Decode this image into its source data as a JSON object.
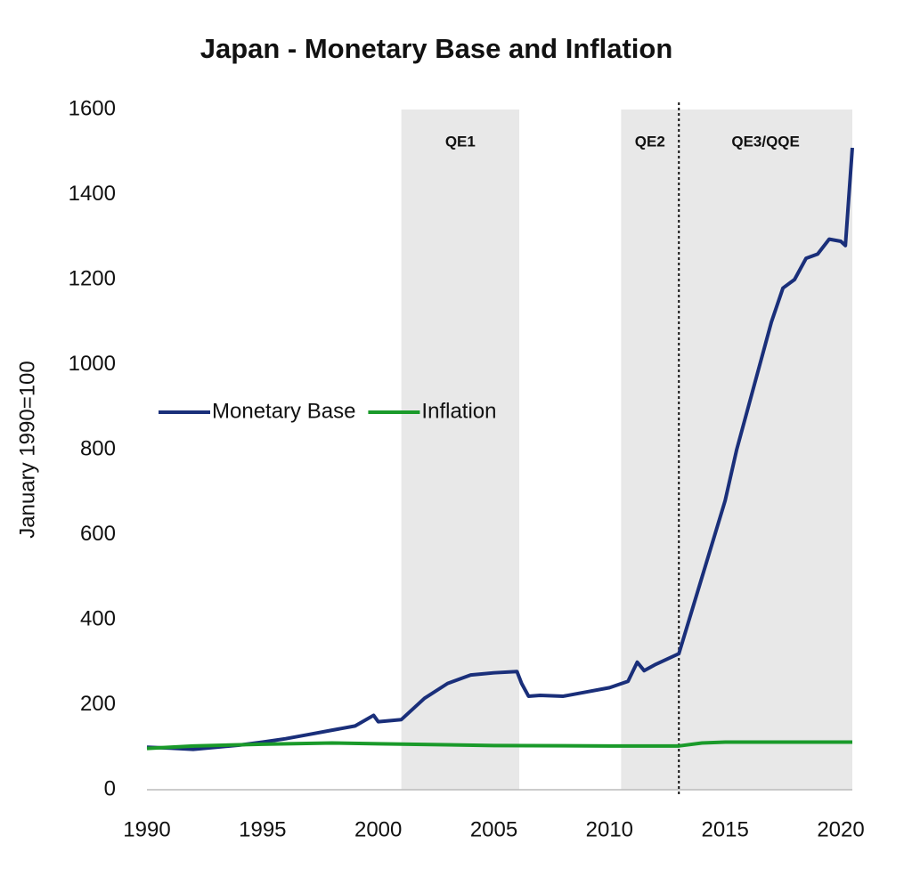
{
  "chart_data": {
    "type": "line",
    "title": "Japan - Monetary Base and Inflation",
    "y_label": "January 1990=100",
    "xlim": [
      1990,
      2020.5
    ],
    "ylim": [
      0,
      1600
    ],
    "xticks": [
      1990,
      1995,
      2000,
      2005,
      2010,
      2015,
      2020
    ],
    "yticks": [
      0,
      200,
      400,
      600,
      800,
      1000,
      1200,
      1400,
      1600
    ],
    "grid": false,
    "legend": "left",
    "shaded_regions": [
      {
        "label": "QE1",
        "start": 2001,
        "end": 2006.1
      },
      {
        "label": "QE2",
        "start": 2010.5,
        "end": 2013
      },
      {
        "label": "QE3/QQE",
        "start": 2013,
        "end": 2020.5
      }
    ],
    "shade_color": "#e8e8e8",
    "vline": 2013,
    "series": [
      {
        "name": "Monetary Base",
        "color": "#1a2f7a",
        "x": [
          1990,
          1991,
          1992,
          1993,
          1994,
          1995,
          1996,
          1997,
          1998,
          1999,
          1999.8,
          2000,
          2001,
          2002,
          2003,
          2004,
          2005,
          2006,
          2006.2,
          2006.5,
          2007,
          2008,
          2009,
          2010,
          2010.8,
          2011.2,
          2011.5,
          2012,
          2013,
          2014,
          2015,
          2015.5,
          2016,
          2017,
          2017.5,
          2018,
          2018.5,
          2019,
          2019.5,
          2020,
          2020.2,
          2020.5
        ],
        "values": [
          100,
          98,
          95,
          100,
          105,
          112,
          120,
          130,
          140,
          150,
          175,
          160,
          165,
          215,
          250,
          270,
          275,
          278,
          250,
          220,
          222,
          220,
          230,
          240,
          255,
          300,
          280,
          295,
          320,
          500,
          680,
          800,
          900,
          1100,
          1180,
          1200,
          1250,
          1260,
          1295,
          1290,
          1280,
          1510
        ]
      },
      {
        "name": "Inflation",
        "color": "#1a9a2a",
        "x": [
          1990,
          1992,
          1995,
          1998,
          2000,
          2005,
          2010,
          2013,
          2014,
          2015,
          2020,
          2020.5
        ],
        "values": [
          97,
          103,
          107,
          110,
          108,
          104,
          103,
          103,
          110,
          112,
          112,
          112
        ]
      }
    ]
  }
}
